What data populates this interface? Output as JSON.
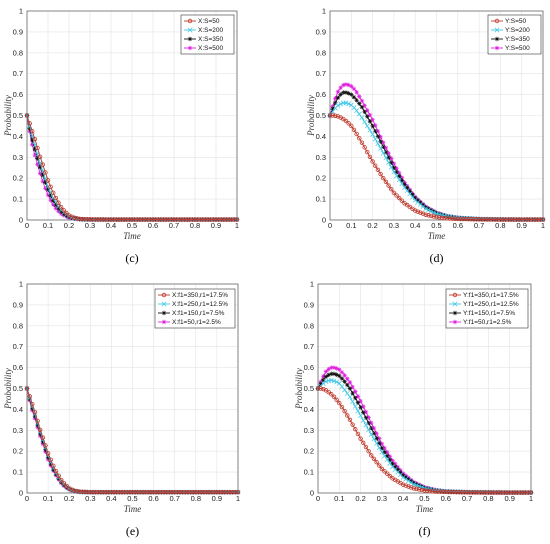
{
  "chart_data": [
    {
      "panel_label": "(c)",
      "type": "line",
      "xlabel": "Time",
      "ylabel": "Probability",
      "xlim": [
        0,
        1
      ],
      "ylim": [
        0,
        1
      ],
      "x_ticks": [
        "0",
        "0.1",
        "0.2",
        "0.3",
        "0.4",
        "0.5",
        "0.6",
        "0.7",
        "0.8",
        "0.9",
        "1"
      ],
      "y_ticks": [
        "0",
        "0.1",
        "0.2",
        "0.3",
        "0.4",
        "0.5",
        "0.6",
        "0.7",
        "0.8",
        "0.9",
        "1"
      ],
      "grid": true,
      "legend_position": "top-right",
      "x": [
        0,
        0.02,
        0.04,
        0.06,
        0.08,
        0.1,
        0.12,
        0.14,
        0.16,
        0.18,
        0.2,
        0.22,
        0.25,
        0.3,
        0.4,
        0.5,
        0.6,
        0.7,
        0.8,
        0.9,
        1
      ],
      "series": [
        {
          "name": "X:S=50",
          "color": "#c0392b",
          "marker": "circle",
          "values": [
            0.5,
            0.44,
            0.38,
            0.31,
            0.25,
            0.19,
            0.14,
            0.1,
            0.065,
            0.04,
            0.022,
            0.012,
            0.005,
            0.003,
            0.002,
            0.002,
            0.002,
            0.002,
            0.002,
            0.002,
            0.002
          ]
        },
        {
          "name": "X:S=200",
          "color": "#3ec7e6",
          "marker": "x",
          "values": [
            0.5,
            0.42,
            0.35,
            0.28,
            0.22,
            0.16,
            0.115,
            0.08,
            0.05,
            0.03,
            0.017,
            0.009,
            0.004,
            0.002,
            0.002,
            0.002,
            0.002,
            0.002,
            0.002,
            0.002,
            0.002
          ]
        },
        {
          "name": "X:S=350",
          "color": "#111111",
          "marker": "star",
          "values": [
            0.5,
            0.4,
            0.33,
            0.26,
            0.2,
            0.145,
            0.1,
            0.068,
            0.043,
            0.026,
            0.015,
            0.008,
            0.004,
            0.002,
            0.002,
            0.002,
            0.002,
            0.002,
            0.002,
            0.002,
            0.002
          ]
        },
        {
          "name": "X:S=500",
          "color": "#e020e0",
          "marker": "star",
          "values": [
            0.5,
            0.38,
            0.3,
            0.23,
            0.17,
            0.12,
            0.08,
            0.052,
            0.032,
            0.019,
            0.011,
            0.006,
            0.003,
            0.002,
            0.002,
            0.002,
            0.002,
            0.002,
            0.002,
            0.002,
            0.002
          ]
        }
      ]
    },
    {
      "panel_label": "(d)",
      "type": "line",
      "xlabel": "Time",
      "ylabel": "Probability",
      "xlim": [
        0,
        1
      ],
      "ylim": [
        0,
        1
      ],
      "x_ticks": [
        "0",
        "0.1",
        "0.2",
        "0.3",
        "0.4",
        "0.5",
        "0.6",
        "0.7",
        "0.8",
        "0.9",
        "1"
      ],
      "y_ticks": [
        "0",
        "0.1",
        "0.2",
        "0.3",
        "0.4",
        "0.5",
        "0.6",
        "0.7",
        "0.8",
        "0.9",
        "1"
      ],
      "grid": true,
      "legend_position": "top-right",
      "x": [
        0,
        0.02,
        0.04,
        0.06,
        0.08,
        0.1,
        0.12,
        0.15,
        0.2,
        0.25,
        0.3,
        0.35,
        0.4,
        0.45,
        0.5,
        0.55,
        0.6,
        0.7,
        0.8,
        0.9,
        1
      ],
      "series": [
        {
          "name": "Y:S=50",
          "color": "#c0392b",
          "marker": "circle",
          "values": [
            0.5,
            0.5,
            0.495,
            0.485,
            0.47,
            0.45,
            0.42,
            0.37,
            0.28,
            0.2,
            0.13,
            0.08,
            0.045,
            0.025,
            0.014,
            0.008,
            0.005,
            0.003,
            0.002,
            0.002,
            0.002
          ]
        },
        {
          "name": "Y:S=200",
          "color": "#3ec7e6",
          "marker": "x",
          "values": [
            0.5,
            0.53,
            0.55,
            0.56,
            0.56,
            0.55,
            0.53,
            0.49,
            0.41,
            0.32,
            0.23,
            0.155,
            0.095,
            0.055,
            0.03,
            0.017,
            0.01,
            0.004,
            0.003,
            0.002,
            0.002
          ]
        },
        {
          "name": "Y:S=350",
          "color": "#111111",
          "marker": "star",
          "values": [
            0.5,
            0.55,
            0.59,
            0.61,
            0.61,
            0.6,
            0.58,
            0.54,
            0.45,
            0.35,
            0.25,
            0.17,
            0.105,
            0.06,
            0.033,
            0.018,
            0.01,
            0.004,
            0.003,
            0.002,
            0.002
          ]
        },
        {
          "name": "Y:S=500",
          "color": "#e020e0",
          "marker": "star",
          "values": [
            0.5,
            0.57,
            0.62,
            0.645,
            0.65,
            0.64,
            0.62,
            0.57,
            0.48,
            0.37,
            0.27,
            0.18,
            0.11,
            0.064,
            0.035,
            0.019,
            0.011,
            0.005,
            0.003,
            0.002,
            0.002
          ]
        }
      ]
    },
    {
      "panel_label": "(e)",
      "type": "line",
      "xlabel": "Time",
      "ylabel": "Probability",
      "xlim": [
        0,
        1
      ],
      "ylim": [
        0,
        1
      ],
      "x_ticks": [
        "0",
        "0.1",
        "0.2",
        "0.3",
        "0.4",
        "0.5",
        "0.6",
        "0.7",
        "0.8",
        "0.9",
        "1"
      ],
      "y_ticks": [
        "0",
        "0.1",
        "0.2",
        "0.3",
        "0.4",
        "0.5",
        "0.6",
        "0.7",
        "0.8",
        "0.9",
        "1"
      ],
      "grid": true,
      "legend_position": "top-right",
      "x": [
        0,
        0.02,
        0.04,
        0.06,
        0.08,
        0.1,
        0.12,
        0.14,
        0.16,
        0.18,
        0.2,
        0.22,
        0.25,
        0.3,
        0.4,
        0.5,
        0.6,
        0.7,
        0.8,
        0.9,
        1
      ],
      "series": [
        {
          "name": "X:f1=350,r1=17.5%",
          "color": "#c0392b",
          "marker": "circle",
          "values": [
            0.5,
            0.44,
            0.38,
            0.31,
            0.25,
            0.19,
            0.14,
            0.1,
            0.065,
            0.04,
            0.022,
            0.012,
            0.006,
            0.004,
            0.004,
            0.004,
            0.004,
            0.004,
            0.004,
            0.004,
            0.004
          ]
        },
        {
          "name": "X:f1=250,r1=12.5%",
          "color": "#3ec7e6",
          "marker": "x",
          "values": [
            0.5,
            0.43,
            0.37,
            0.3,
            0.24,
            0.18,
            0.13,
            0.09,
            0.058,
            0.035,
            0.02,
            0.011,
            0.005,
            0.004,
            0.004,
            0.004,
            0.004,
            0.004,
            0.004,
            0.004,
            0.004
          ]
        },
        {
          "name": "X:f1=150,r1=7.5%",
          "color": "#111111",
          "marker": "star",
          "values": [
            0.5,
            0.42,
            0.36,
            0.29,
            0.23,
            0.17,
            0.12,
            0.085,
            0.054,
            0.033,
            0.019,
            0.01,
            0.005,
            0.004,
            0.004,
            0.004,
            0.004,
            0.004,
            0.004,
            0.004,
            0.004
          ]
        },
        {
          "name": "X:f1=50,r1=2.5%",
          "color": "#e020e0",
          "marker": "star",
          "values": [
            0.5,
            0.41,
            0.35,
            0.28,
            0.22,
            0.16,
            0.115,
            0.08,
            0.05,
            0.03,
            0.017,
            0.009,
            0.005,
            0.004,
            0.004,
            0.004,
            0.004,
            0.004,
            0.004,
            0.004,
            0.004
          ]
        }
      ]
    },
    {
      "panel_label": "(f)",
      "type": "line",
      "xlabel": "Time",
      "ylabel": "Probability",
      "xlim": [
        0,
        1
      ],
      "ylim": [
        0,
        1
      ],
      "x_ticks": [
        "0",
        "0.1",
        "0.2",
        "0.3",
        "0.4",
        "0.5",
        "0.6",
        "0.7",
        "0.8",
        "0.9",
        "1"
      ],
      "y_ticks": [
        "0",
        "0.1",
        "0.2",
        "0.3",
        "0.4",
        "0.5",
        "0.6",
        "0.7",
        "0.8",
        "0.9",
        "1"
      ],
      "grid": true,
      "legend_position": "top-right",
      "x": [
        0,
        0.02,
        0.04,
        0.06,
        0.08,
        0.1,
        0.12,
        0.15,
        0.2,
        0.25,
        0.3,
        0.35,
        0.4,
        0.45,
        0.5,
        0.55,
        0.6,
        0.7,
        0.8,
        0.9,
        1
      ],
      "series": [
        {
          "name": "Y:f1=350,r1=17.5%",
          "color": "#c0392b",
          "marker": "circle",
          "values": [
            0.5,
            0.5,
            0.49,
            0.475,
            0.455,
            0.43,
            0.4,
            0.35,
            0.26,
            0.18,
            0.115,
            0.07,
            0.04,
            0.022,
            0.012,
            0.007,
            0.005,
            0.003,
            0.002,
            0.002,
            0.002
          ]
        },
        {
          "name": "Y:f1=250,r1=12.5%",
          "color": "#3ec7e6",
          "marker": "x",
          "values": [
            0.5,
            0.52,
            0.535,
            0.54,
            0.535,
            0.525,
            0.5,
            0.46,
            0.37,
            0.28,
            0.195,
            0.125,
            0.075,
            0.042,
            0.023,
            0.012,
            0.007,
            0.004,
            0.003,
            0.002,
            0.002
          ]
        },
        {
          "name": "Y:f1=150,r1=7.5%",
          "color": "#111111",
          "marker": "star",
          "values": [
            0.5,
            0.535,
            0.56,
            0.57,
            0.57,
            0.56,
            0.54,
            0.5,
            0.41,
            0.31,
            0.215,
            0.14,
            0.084,
            0.047,
            0.025,
            0.013,
            0.007,
            0.004,
            0.003,
            0.002,
            0.002
          ]
        },
        {
          "name": "Y:f1=50,r1=2.5%",
          "color": "#e020e0",
          "marker": "star",
          "values": [
            0.5,
            0.55,
            0.585,
            0.6,
            0.6,
            0.59,
            0.57,
            0.53,
            0.44,
            0.335,
            0.235,
            0.155,
            0.093,
            0.052,
            0.028,
            0.015,
            0.008,
            0.004,
            0.003,
            0.002,
            0.002
          ]
        }
      ]
    }
  ]
}
